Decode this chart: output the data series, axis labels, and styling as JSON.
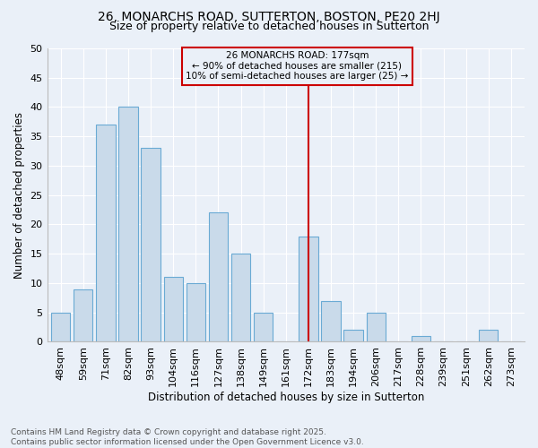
{
  "title1": "26, MONARCHS ROAD, SUTTERTON, BOSTON, PE20 2HJ",
  "title2": "Size of property relative to detached houses in Sutterton",
  "xlabel": "Distribution of detached houses by size in Sutterton",
  "ylabel": "Number of detached properties",
  "categories": [
    "48sqm",
    "59sqm",
    "71sqm",
    "82sqm",
    "93sqm",
    "104sqm",
    "116sqm",
    "127sqm",
    "138sqm",
    "149sqm",
    "161sqm",
    "172sqm",
    "183sqm",
    "194sqm",
    "206sqm",
    "217sqm",
    "228sqm",
    "239sqm",
    "251sqm",
    "262sqm",
    "273sqm"
  ],
  "values": [
    5,
    9,
    37,
    40,
    33,
    11,
    10,
    22,
    15,
    5,
    0,
    18,
    7,
    2,
    5,
    0,
    1,
    0,
    0,
    2,
    0
  ],
  "bar_color": "#c9daea",
  "bar_edge_color": "#6aaad4",
  "vline_x_idx": 11,
  "vline_color": "#cc0000",
  "annotation_line1": "26 MONARCHS ROAD: 177sqm",
  "annotation_line2": "← 90% of detached houses are smaller (215)",
  "annotation_line3": "10% of semi-detached houses are larger (25) →",
  "ylim": [
    0,
    50
  ],
  "yticks": [
    0,
    5,
    10,
    15,
    20,
    25,
    30,
    35,
    40,
    45,
    50
  ],
  "bg_color": "#eaf0f8",
  "grid_color": "#ffffff",
  "footer": "Contains HM Land Registry data © Crown copyright and database right 2025.\nContains public sector information licensed under the Open Government Licence v3.0.",
  "title1_fontsize": 10,
  "title2_fontsize": 9,
  "xlabel_fontsize": 8.5,
  "ylabel_fontsize": 8.5,
  "tick_fontsize": 8,
  "footer_fontsize": 6.5,
  "annotation_fontsize": 7.5
}
